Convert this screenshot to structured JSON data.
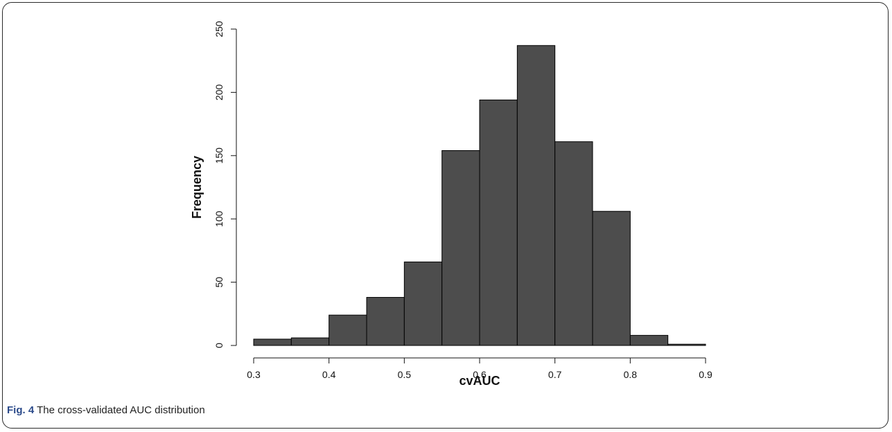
{
  "caption": {
    "label": "Fig. 4",
    "text": "The cross-validated AUC distribution"
  },
  "chart_data": {
    "type": "bar",
    "title": "",
    "xlabel": "cvAUC",
    "ylabel": "Frequency",
    "bin_edges": [
      0.3,
      0.35,
      0.4,
      0.45,
      0.5,
      0.55,
      0.6,
      0.65,
      0.7,
      0.75,
      0.8,
      0.85,
      0.9
    ],
    "values": [
      5,
      6,
      24,
      38,
      66,
      154,
      194,
      237,
      161,
      106,
      8,
      1
    ],
    "xlim": [
      0.3,
      0.9
    ],
    "ylim": [
      0,
      250
    ],
    "x_ticks": [
      "0.3",
      "0.4",
      "0.5",
      "0.6",
      "0.7",
      "0.8",
      "0.9"
    ],
    "y_ticks": [
      "0",
      "50",
      "100",
      "150",
      "200",
      "250"
    ],
    "bar_color": "#4d4d4d",
    "grid": false
  }
}
